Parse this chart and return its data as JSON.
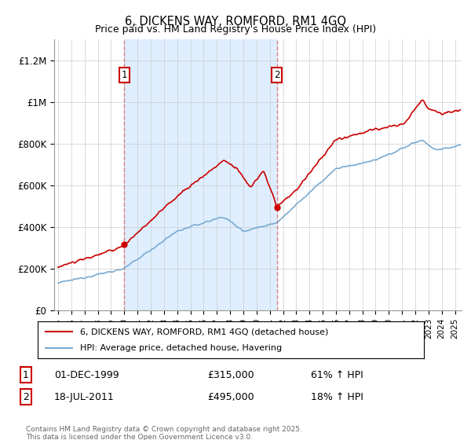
{
  "title": "6, DICKENS WAY, ROMFORD, RM1 4GQ",
  "subtitle": "Price paid vs. HM Land Registry's House Price Index (HPI)",
  "ylabel_ticks": [
    "£0",
    "£200K",
    "£400K",
    "£600K",
    "£800K",
    "£1M",
    "£1.2M"
  ],
  "ytick_values": [
    0,
    200000,
    400000,
    600000,
    800000,
    1000000,
    1200000
  ],
  "ylim": [
    0,
    1300000
  ],
  "xlim_start": 1994.7,
  "xlim_end": 2025.5,
  "transaction1": {
    "label": "1",
    "date": "01-DEC-1999",
    "price": 315000,
    "pct": "61%",
    "direction": "↑",
    "x": 2000.0
  },
  "transaction2": {
    "label": "2",
    "date": "18-JUL-2011",
    "price": 495000,
    "pct": "18%",
    "direction": "↑",
    "x": 2011.54
  },
  "line1_label": "6, DICKENS WAY, ROMFORD, RM1 4GQ (detached house)",
  "line2_label": "HPI: Average price, detached house, Havering",
  "line1_color": "#cc0000",
  "line2_color": "#7aaad0",
  "dashed_color": "#e08080",
  "shaded_color": "#deeeff",
  "footer": "Contains HM Land Registry data © Crown copyright and database right 2025.\nThis data is licensed under the Open Government Licence v3.0.",
  "background_color": "#ffffff",
  "grid_color": "#cccccc"
}
